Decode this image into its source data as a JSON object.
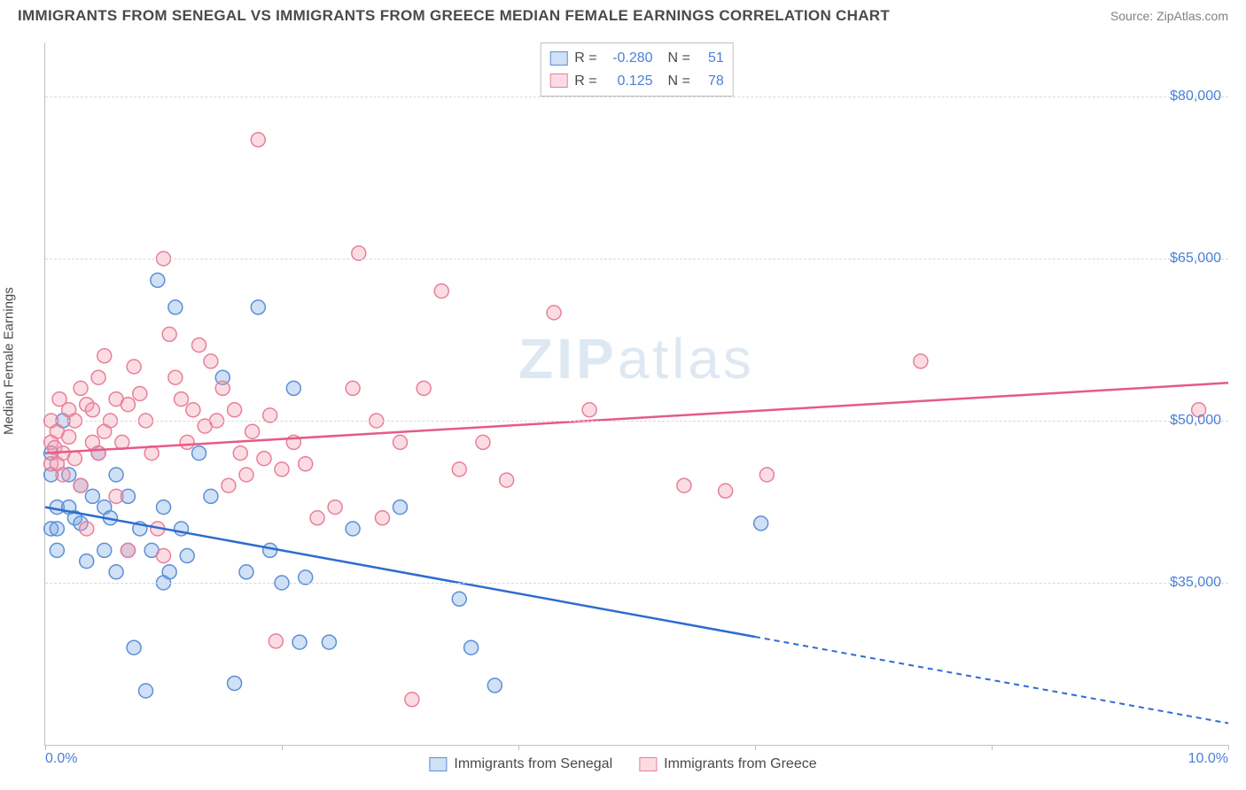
{
  "title": "IMMIGRANTS FROM SENEGAL VS IMMIGRANTS FROM GREECE MEDIAN FEMALE EARNINGS CORRELATION CHART",
  "source": "Source: ZipAtlas.com",
  "ylabel": "Median Female Earnings",
  "watermark": {
    "part1": "ZIP",
    "part2": "atlas"
  },
  "chart": {
    "type": "scatter",
    "xlim": [
      0,
      10
    ],
    "ylim": [
      20000,
      85000
    ],
    "xticks": [
      {
        "v": 0,
        "label": "0.0%"
      },
      {
        "v": 2,
        "label": ""
      },
      {
        "v": 4,
        "label": ""
      },
      {
        "v": 6,
        "label": ""
      },
      {
        "v": 8,
        "label": ""
      },
      {
        "v": 10,
        "label": "10.0%"
      }
    ],
    "yticks": [
      {
        "v": 35000,
        "label": "$35,000"
      },
      {
        "v": 50000,
        "label": "$50,000"
      },
      {
        "v": 65000,
        "label": "$65,000"
      },
      {
        "v": 80000,
        "label": "$80,000"
      }
    ],
    "grid_color": "#d8d8d8",
    "axis_color": "#c0c0c0",
    "marker_radius": 8,
    "marker_stroke_width": 1.5,
    "series": [
      {
        "name": "Immigrants from Senegal",
        "fill": "rgba(120,165,225,0.35)",
        "stroke": "#5b8fd6",
        "line_color": "#2d6cd0",
        "R": "-0.280",
        "N": "51",
        "trend": {
          "x1": 0,
          "y1": 42000,
          "x2": 10,
          "y2": 22000,
          "dash_from_x": 6.0
        },
        "points": [
          [
            0.05,
            47000
          ],
          [
            0.05,
            45000
          ],
          [
            0.05,
            40000
          ],
          [
            0.1,
            42000
          ],
          [
            0.1,
            40000
          ],
          [
            0.1,
            38000
          ],
          [
            0.15,
            50000
          ],
          [
            0.2,
            42000
          ],
          [
            0.2,
            45000
          ],
          [
            0.25,
            41000
          ],
          [
            0.3,
            44000
          ],
          [
            0.3,
            40500
          ],
          [
            0.35,
            37000
          ],
          [
            0.4,
            43000
          ],
          [
            0.45,
            47000
          ],
          [
            0.5,
            42000
          ],
          [
            0.5,
            38000
          ],
          [
            0.55,
            41000
          ],
          [
            0.6,
            36000
          ],
          [
            0.6,
            45000
          ],
          [
            0.7,
            38000
          ],
          [
            0.7,
            43000
          ],
          [
            0.75,
            29000
          ],
          [
            0.8,
            40000
          ],
          [
            0.85,
            25000
          ],
          [
            0.9,
            38000
          ],
          [
            0.95,
            63000
          ],
          [
            1.0,
            35000
          ],
          [
            1.0,
            42000
          ],
          [
            1.05,
            36000
          ],
          [
            1.1,
            60500
          ],
          [
            1.15,
            40000
          ],
          [
            1.2,
            37500
          ],
          [
            1.3,
            47000
          ],
          [
            1.4,
            43000
          ],
          [
            1.5,
            54000
          ],
          [
            1.6,
            25700
          ],
          [
            1.7,
            36000
          ],
          [
            1.8,
            60500
          ],
          [
            1.9,
            38000
          ],
          [
            2.0,
            35000
          ],
          [
            2.1,
            53000
          ],
          [
            2.15,
            29500
          ],
          [
            2.2,
            35500
          ],
          [
            2.4,
            29500
          ],
          [
            2.6,
            40000
          ],
          [
            3.0,
            42000
          ],
          [
            3.5,
            33500
          ],
          [
            3.6,
            29000
          ],
          [
            3.8,
            25500
          ],
          [
            6.05,
            40500
          ]
        ]
      },
      {
        "name": "Immigrants from Greece",
        "fill": "rgba(245,155,175,0.35)",
        "stroke": "#e77f9b",
        "line_color": "#e65a87",
        "R": "0.125",
        "N": "78",
        "trend": {
          "x1": 0,
          "y1": 47000,
          "x2": 10,
          "y2": 53500,
          "dash_from_x": null
        },
        "points": [
          [
            0.05,
            48000
          ],
          [
            0.05,
            46000
          ],
          [
            0.05,
            50000
          ],
          [
            0.08,
            47500
          ],
          [
            0.1,
            46000
          ],
          [
            0.1,
            49000
          ],
          [
            0.12,
            52000
          ],
          [
            0.15,
            47000
          ],
          [
            0.15,
            45000
          ],
          [
            0.2,
            51000
          ],
          [
            0.2,
            48500
          ],
          [
            0.25,
            46500
          ],
          [
            0.25,
            50000
          ],
          [
            0.3,
            53000
          ],
          [
            0.3,
            44000
          ],
          [
            0.35,
            51500
          ],
          [
            0.35,
            40000
          ],
          [
            0.4,
            51000
          ],
          [
            0.4,
            48000
          ],
          [
            0.45,
            54000
          ],
          [
            0.45,
            47000
          ],
          [
            0.5,
            56000
          ],
          [
            0.5,
            49000
          ],
          [
            0.55,
            50000
          ],
          [
            0.6,
            52000
          ],
          [
            0.6,
            43000
          ],
          [
            0.65,
            48000
          ],
          [
            0.7,
            51500
          ],
          [
            0.7,
            38000
          ],
          [
            0.75,
            55000
          ],
          [
            0.8,
            52500
          ],
          [
            0.85,
            50000
          ],
          [
            0.9,
            47000
          ],
          [
            0.95,
            40000
          ],
          [
            1.0,
            65000
          ],
          [
            1.0,
            37500
          ],
          [
            1.05,
            58000
          ],
          [
            1.1,
            54000
          ],
          [
            1.15,
            52000
          ],
          [
            1.2,
            48000
          ],
          [
            1.25,
            51000
          ],
          [
            1.3,
            57000
          ],
          [
            1.35,
            49500
          ],
          [
            1.4,
            55500
          ],
          [
            1.45,
            50000
          ],
          [
            1.5,
            53000
          ],
          [
            1.55,
            44000
          ],
          [
            1.6,
            51000
          ],
          [
            1.65,
            47000
          ],
          [
            1.7,
            45000
          ],
          [
            1.75,
            49000
          ],
          [
            1.8,
            76000
          ],
          [
            1.85,
            46500
          ],
          [
            1.9,
            50500
          ],
          [
            1.95,
            29600
          ],
          [
            2.0,
            45500
          ],
          [
            2.1,
            48000
          ],
          [
            2.2,
            46000
          ],
          [
            2.3,
            41000
          ],
          [
            2.45,
            42000
          ],
          [
            2.6,
            53000
          ],
          [
            2.65,
            65500
          ],
          [
            2.8,
            50000
          ],
          [
            2.85,
            41000
          ],
          [
            3.0,
            48000
          ],
          [
            3.1,
            24200
          ],
          [
            3.2,
            53000
          ],
          [
            3.35,
            62000
          ],
          [
            3.5,
            45500
          ],
          [
            3.7,
            48000
          ],
          [
            3.9,
            44500
          ],
          [
            4.3,
            60000
          ],
          [
            4.6,
            51000
          ],
          [
            5.4,
            44000
          ],
          [
            5.75,
            43500
          ],
          [
            6.1,
            45000
          ],
          [
            7.4,
            55500
          ],
          [
            9.75,
            51000
          ]
        ]
      }
    ]
  },
  "colors": {
    "title": "#4a4a4a",
    "source": "#808080",
    "tick_label": "#4a7fd8",
    "background": "#ffffff"
  }
}
